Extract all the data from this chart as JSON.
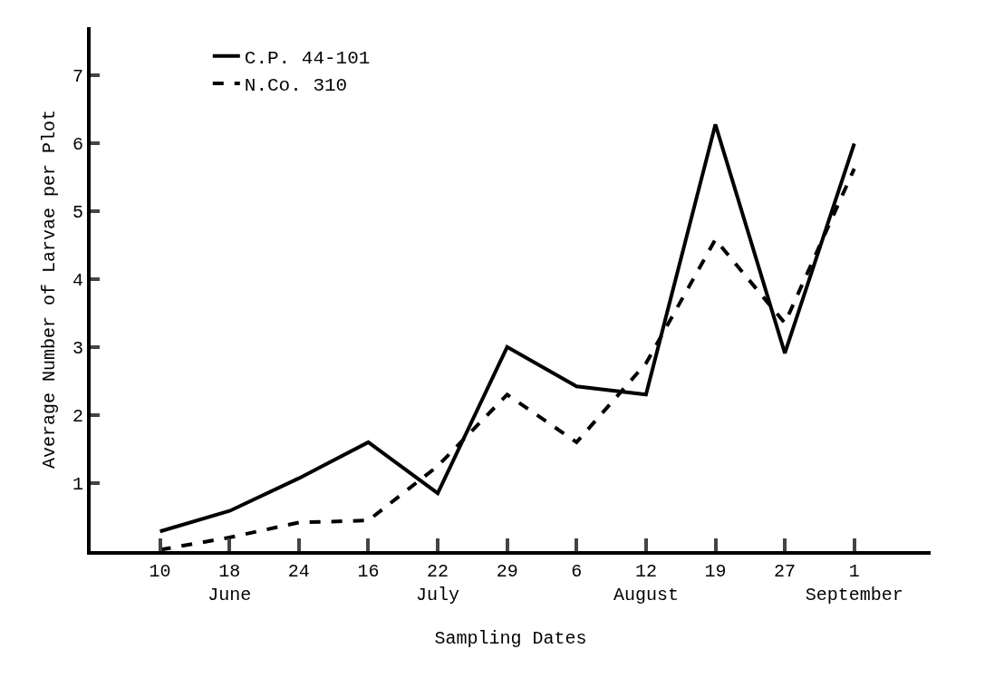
{
  "chart_data": {
    "type": "line",
    "xlabel": "Sampling Dates",
    "ylabel": "Average Number of Larvae per Plot",
    "categories": [
      "10",
      "18\nJune",
      "24",
      "16",
      "22\nJuly",
      "29",
      "6",
      "12\nAugust",
      "19",
      "27",
      "1\nSeptember"
    ],
    "series": [
      {
        "name": "C.P. 44-101",
        "color": "#000000",
        "line_style": "solid",
        "values": [
          0.29,
          0.59,
          1.07,
          1.6,
          0.85,
          3.0,
          2.42,
          2.3,
          6.27,
          2.91,
          5.99
        ]
      },
      {
        "name": "N.Co. 310",
        "color": "#000000",
        "line_style": "dashed",
        "values": [
          0.02,
          0.2,
          0.42,
          0.45,
          1.25,
          2.3,
          1.6,
          2.76,
          4.58,
          3.35,
          5.62
        ]
      }
    ],
    "ylim": [
      0,
      7.7
    ],
    "yticks": [
      1,
      2,
      3,
      4,
      5,
      6,
      7
    ],
    "grid": false,
    "legend": "top left",
    "marker": "none"
  }
}
